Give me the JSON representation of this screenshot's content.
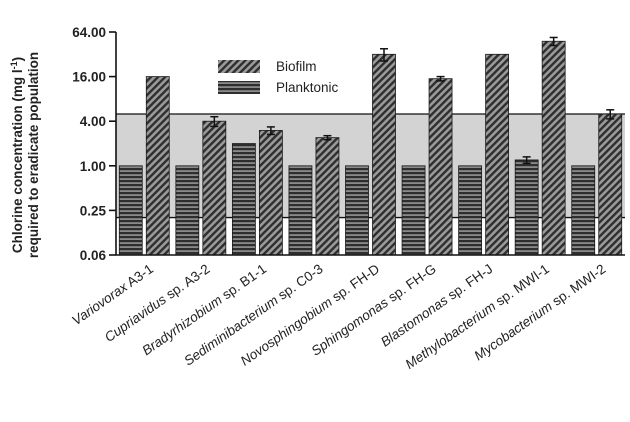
{
  "chart_data": {
    "type": "bar",
    "ylabel_line1": "Chlorine concentration (mg l",
    "ylabel_sup": "-1",
    "ylabel_line1_end": ")",
    "ylabel_line2": "required to eradicate population",
    "y_scale": "log2",
    "ylim": [
      0.0625,
      64
    ],
    "yticks": [
      {
        "value": 0.0625,
        "label": "0.06"
      },
      {
        "value": 0.25,
        "label": "0.25"
      },
      {
        "value": 1,
        "label": "1.00"
      },
      {
        "value": 4,
        "label": "4.00"
      },
      {
        "value": 16,
        "label": "16.00"
      },
      {
        "value": 64,
        "label": "64.00"
      }
    ],
    "shaded_band": [
      0.2,
      5.0
    ],
    "legend_position": "top-center",
    "categories": [
      {
        "genus": "Variovorax",
        "rest": " A3-1"
      },
      {
        "genus": "Cupriavidus",
        "rest": " sp. A3-2"
      },
      {
        "genus": "Bradyrhizobium",
        "rest": " sp. B1-1"
      },
      {
        "genus": "Sediminibacterium",
        "rest": " sp. C0-3"
      },
      {
        "genus": "Novosphingobium",
        "rest": " sp. FH-D"
      },
      {
        "genus": "Sphingomonas",
        "rest": " sp. FH-G"
      },
      {
        "genus": "Blastomonas",
        "rest": " sp. FH-J"
      },
      {
        "genus": "Methylobacterium",
        "rest": " sp. MWI-1"
      },
      {
        "genus": "Mycobacterium",
        "rest": " sp. MWI-2"
      }
    ],
    "series": [
      {
        "name": "Planktonic",
        "pattern": "horizontal",
        "values": [
          1,
          1,
          2,
          1,
          1,
          1,
          1,
          1.2,
          1
        ],
        "errors": [
          null,
          null,
          null,
          null,
          null,
          null,
          null,
          0.12,
          null
        ]
      },
      {
        "name": "Biofilm",
        "pattern": "diagonal",
        "values": [
          16,
          4,
          3,
          2.4,
          32,
          15,
          32,
          48,
          5
        ],
        "errors": [
          null,
          0.6,
          0.35,
          0.15,
          6,
          1,
          null,
          6,
          0.7
        ]
      }
    ],
    "colors": {
      "bar_fill": "#4a4a4a",
      "band": "#d3d3d3",
      "band_edge": "#111111"
    }
  }
}
